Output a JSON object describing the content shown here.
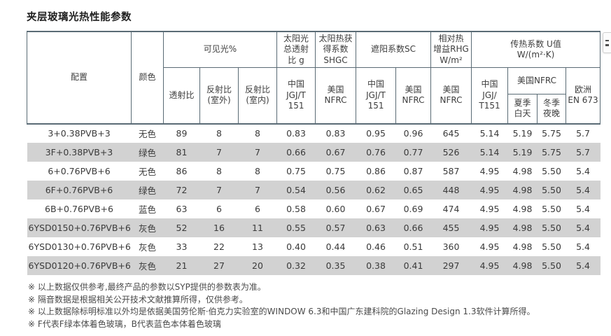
{
  "page": {
    "title": "夹层玻璃光热性能参数"
  },
  "table": {
    "groups": {
      "config": "配置",
      "color": "颜色",
      "visible_light": "可见光%",
      "solar_g": "太阳光\n总透射\n比 g",
      "shgc": "太阳热获\n得系数\nSHGC",
      "sc": "遮阳系数SC",
      "rhg": "相对热\n增益RHG\nW/m²",
      "u_value": "传热系数 U值\nW/(m²·K)"
    },
    "subheaders": {
      "transmittance": "透射比",
      "reflectance_outdoor": "反射比\n(室外)",
      "reflectance_indoor": "反射比\n(室内)",
      "g_china": "中国\nJGJ/T\n151",
      "shgc_us": "美国\nNFRC",
      "sc_china": "中国\nJGJ/T\n151",
      "sc_us": "美国\nNFRC",
      "rhg_us": "美国\nNFRC",
      "u_china": "中国\nJGJ/\nT151",
      "u_us": "美国NFRC",
      "u_eu": "欧洲\nEN 673",
      "summer_day": "夏季\n白天",
      "winter_night": "冬季\n夜晚"
    },
    "rows": [
      [
        "3+0.38PVB+3",
        "无色",
        "89",
        "8",
        "8",
        "0.83",
        "0.83",
        "0.95",
        "0.96",
        "645",
        "5.14",
        "5.19",
        "5.75",
        "5.7"
      ],
      [
        "3F+0.38PVB+3",
        "绿色",
        "81",
        "7",
        "7",
        "0.66",
        "0.67",
        "0.76",
        "0.77",
        "526",
        "5.14",
        "5.19",
        "5.75",
        "5.7"
      ],
      [
        "6+0.76PVB+6",
        "无色",
        "86",
        "8",
        "8",
        "0.75",
        "0.75",
        "0.86",
        "0.87",
        "587",
        "4.95",
        "4.98",
        "5.50",
        "5.4"
      ],
      [
        "6F+0.76PVB+6",
        "绿色",
        "72",
        "7",
        "7",
        "0.54",
        "0.56",
        "0.62",
        "0.65",
        "448",
        "4.95",
        "4.98",
        "5.50",
        "5.4"
      ],
      [
        "6B+0.76PVB+6",
        "蓝色",
        "63",
        "6",
        "6",
        "0.58",
        "0.60",
        "0.67",
        "0.69",
        "474",
        "4.95",
        "4.98",
        "5.50",
        "5.4"
      ],
      [
        "6YSD0150+0.76PVB+6",
        "灰色",
        "52",
        "16",
        "11",
        "0.55",
        "0.57",
        "0.63",
        "0.66",
        "455",
        "4.95",
        "4.98",
        "5.50",
        "5.4"
      ],
      [
        "6YSD0130+0.76PVB+6",
        "灰色",
        "33",
        "22",
        "13",
        "0.40",
        "0.44",
        "0.46",
        "0.51",
        "360",
        "4.95",
        "4.98",
        "5.50",
        "5.4"
      ],
      [
        "6YSD0120+0.76PVB+6",
        "灰色",
        "21",
        "27",
        "20",
        "0.32",
        "0.35",
        "0.38",
        "0.41",
        "297",
        "4.95",
        "4.98",
        "5.50",
        "5.4"
      ]
    ]
  },
  "footnotes": [
    "※ 以上数据仅供参考,最终产品的参数以SYP提供的参数表为准。",
    "※ 隔音数据是根据相关公开技术文献推算所得，仅供参考。",
    "※ 以上数据除标明标准以外均是依据美国劳伦斯·伯克力实验室的WINDOW 6.3和中国广东建科院的Glazing Design 1.3软件计算所得。",
    "※ F代表F绿本体着色玻璃，B代表蓝色本体着色玻璃"
  ],
  "colors": {
    "border": "#5a6b75",
    "zebra_row": "#d2d2d2",
    "text": "#3a3a3a"
  }
}
